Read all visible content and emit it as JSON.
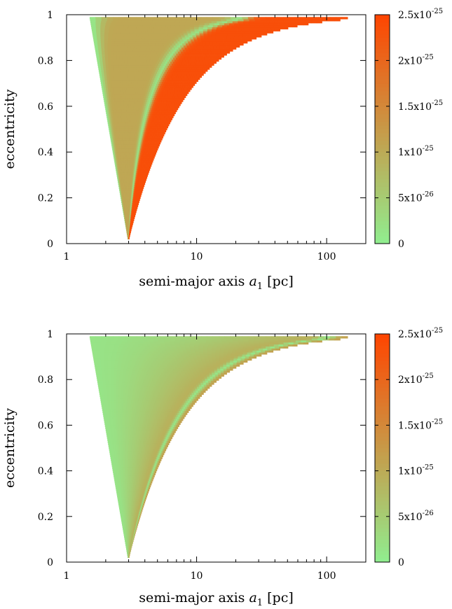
{
  "chart_data": [
    {
      "type": "heatmap",
      "panel": "top",
      "title": "",
      "xlabel": {
        "main": "semi-major axis ",
        "var": "a",
        "sub": "1",
        "unit": " [pc]"
      },
      "ylabel": "eccentricity",
      "x_scale": "log",
      "xlim": [
        1,
        200
      ],
      "ylim": [
        0,
        1
      ],
      "x_ticks": [
        {
          "v": 1,
          "label": "1"
        },
        {
          "v": 10,
          "label": "10"
        },
        {
          "v": 100,
          "label": "100"
        }
      ],
      "y_ticks": [
        {
          "v": 0,
          "label": "0"
        },
        {
          "v": 0.2,
          "label": "0.2"
        },
        {
          "v": 0.4,
          "label": "0.4"
        },
        {
          "v": 0.6,
          "label": "0.6"
        },
        {
          "v": 0.8,
          "label": "0.8"
        },
        {
          "v": 1,
          "label": "1"
        }
      ],
      "colorbar": {
        "range": [
          0,
          2.5e-25
        ],
        "colors": [
          "#90ee90",
          "#ff4500"
        ],
        "ticks": [
          {
            "v": 0,
            "base": "0",
            "exp": ""
          },
          {
            "v": 5e-26,
            "base": "5x10",
            "exp": "-26"
          },
          {
            "v": 1e-25,
            "base": "1x10",
            "exp": "-25"
          },
          {
            "v": 1.5e-25,
            "base": "1.5x10",
            "exp": "-25"
          },
          {
            "v": 2e-25,
            "base": "2x10",
            "exp": "-25"
          },
          {
            "v": 2.5e-25,
            "base": "2.5x10",
            "exp": "-25"
          }
        ]
      },
      "region": {
        "apex": {
          "a": 2.95,
          "e": 0.02
        },
        "inner_boundary_a_at_e": 1.5,
        "top_e": 0.99,
        "top_a_max": 145,
        "outer_boundary": "a = 2.95 / (1 - e)"
      },
      "features": {
        "background_value": 1.05e-25,
        "band_relative_position": 0.58,
        "band_value": 2e-26,
        "outer_region_value": 2.35e-25,
        "left_edge_value": 1e-26
      }
    },
    {
      "type": "heatmap",
      "panel": "bottom",
      "title": "",
      "xlabel": {
        "main": "semi-major axis ",
        "var": "a",
        "sub": "1",
        "unit": " [pc]"
      },
      "ylabel": "eccentricity",
      "x_scale": "log",
      "xlim": [
        1,
        200
      ],
      "ylim": [
        0,
        1
      ],
      "x_ticks": [
        {
          "v": 1,
          "label": "1"
        },
        {
          "v": 10,
          "label": "10"
        },
        {
          "v": 100,
          "label": "100"
        }
      ],
      "y_ticks": [
        {
          "v": 0,
          "label": "0"
        },
        {
          "v": 0.2,
          "label": "0.2"
        },
        {
          "v": 0.4,
          "label": "0.4"
        },
        {
          "v": 0.6,
          "label": "0.6"
        },
        {
          "v": 0.8,
          "label": "0.8"
        },
        {
          "v": 1,
          "label": "1"
        }
      ],
      "colorbar": {
        "range": [
          0,
          2.5e-25
        ],
        "colors": [
          "#90ee90",
          "#ff4500"
        ],
        "ticks": [
          {
            "v": 0,
            "base": "0",
            "exp": ""
          },
          {
            "v": 5e-26,
            "base": "5x10",
            "exp": "-26"
          },
          {
            "v": 1e-25,
            "base": "1x10",
            "exp": "-25"
          },
          {
            "v": 1.5e-25,
            "base": "1.5x10",
            "exp": "-25"
          },
          {
            "v": 2e-25,
            "base": "2x10",
            "exp": "-25"
          },
          {
            "v": 2.5e-25,
            "base": "2.5x10",
            "exp": "-25"
          }
        ]
      },
      "region": {
        "apex": {
          "a": 2.95,
          "e": 0.02
        },
        "inner_boundary_a_at_e": 1.5,
        "top_e": 0.99,
        "top_a_max": 145,
        "outer_boundary": "a = 2.95 / (1 - e)"
      },
      "features": {
        "left_value": 1.5e-26,
        "right_value": 1.1e-25,
        "band_relative_position": 0.92,
        "band_value": 1.5e-26,
        "outer_edge_value": 1.15e-25
      }
    }
  ]
}
